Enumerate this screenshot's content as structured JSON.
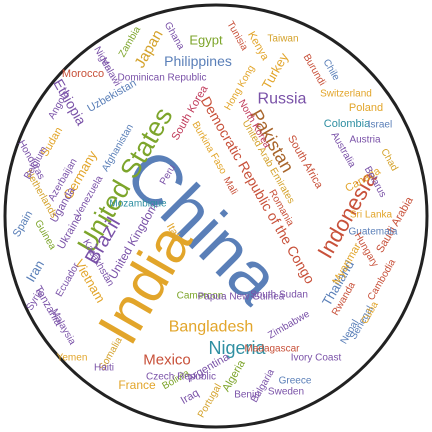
{
  "palette": {
    "blue": "#5a7fb8",
    "purple": "#7a52a8",
    "green": "#7da52b",
    "orange": "#e2a52a",
    "red": "#c8513a",
    "teal": "#2f8fa2",
    "crimson": "#c03a5a",
    "brown": "#a8652b",
    "gold": "#d4a22b"
  },
  "words": [
    {
      "text": "China",
      "color": "blue"
    },
    {
      "text": "India",
      "color": "orange"
    },
    {
      "text": "United States",
      "color": "green"
    },
    {
      "text": "Indonesia",
      "color": "red"
    },
    {
      "text": "Brazil",
      "color": "purple"
    },
    {
      "text": "Pakistan",
      "color": "brown"
    },
    {
      "text": "Nigeria",
      "color": "teal"
    },
    {
      "text": "Bangladesh",
      "color": "orange"
    },
    {
      "text": "Russia",
      "color": "purple"
    },
    {
      "text": "Mexico",
      "color": "red"
    },
    {
      "text": "Japan",
      "color": "gold"
    },
    {
      "text": "Ethiopia",
      "color": "purple"
    },
    {
      "text": "Philippines",
      "color": "blue"
    },
    {
      "text": "Egypt",
      "color": "green"
    },
    {
      "text": "Vietnam",
      "color": "orange"
    },
    {
      "text": "Democratic Republic of the Congo",
      "color": "red"
    },
    {
      "text": "Germany",
      "color": "orange"
    },
    {
      "text": "Turkey",
      "color": "orange"
    },
    {
      "text": "Iran",
      "color": "blue"
    },
    {
      "text": "Thailand",
      "color": "blue"
    },
    {
      "text": "France",
      "color": "orange"
    },
    {
      "text": "United Kingdom",
      "color": "purple"
    },
    {
      "text": "Italy",
      "color": "orange"
    },
    {
      "text": "South Africa",
      "color": "red"
    },
    {
      "text": "Tanzania",
      "color": "purple"
    },
    {
      "text": "Myanmar",
      "color": "orange"
    },
    {
      "text": "Kenya",
      "color": "orange"
    },
    {
      "text": "South Korea",
      "color": "crimson"
    },
    {
      "text": "Colombia",
      "color": "teal"
    },
    {
      "text": "Spain",
      "color": "blue"
    },
    {
      "text": "Ukraine",
      "color": "purple"
    },
    {
      "text": "Argentina",
      "color": "purple"
    },
    {
      "text": "Algeria",
      "color": "green"
    },
    {
      "text": "Sudan",
      "color": "orange"
    },
    {
      "text": "Uganda",
      "color": "purple"
    },
    {
      "text": "Iraq",
      "color": "purple"
    },
    {
      "text": "Poland",
      "color": "orange"
    },
    {
      "text": "Canada",
      "color": "orange"
    },
    {
      "text": "Morocco",
      "color": "red"
    },
    {
      "text": "Saudi Arabia",
      "color": "red"
    },
    {
      "text": "Uzbekistan",
      "color": "blue"
    },
    {
      "text": "Peru",
      "color": "purple"
    },
    {
      "text": "Malaysia",
      "color": "purple"
    },
    {
      "text": "Venezuela",
      "color": "purple"
    },
    {
      "text": "Nepal",
      "color": "blue"
    },
    {
      "text": "Afghanistan",
      "color": "blue"
    },
    {
      "text": "Yemen",
      "color": "orange"
    },
    {
      "text": "Ghana",
      "color": "purple"
    },
    {
      "text": "Mozambique",
      "color": "teal"
    },
    {
      "text": "North Korea",
      "color": "crimson"
    },
    {
      "text": "Australia",
      "color": "purple"
    },
    {
      "text": "Cameroon",
      "color": "green"
    },
    {
      "text": "Ivory Coast",
      "color": "purple"
    },
    {
      "text": "Madagascar",
      "color": "red"
    },
    {
      "text": "Taiwan",
      "color": "gold"
    },
    {
      "text": "Sri Lanka",
      "color": "orange"
    },
    {
      "text": "Niger",
      "color": "purple"
    },
    {
      "text": "Romania",
      "color": "red"
    },
    {
      "text": "Burkina Faso",
      "color": "orange"
    },
    {
      "text": "Syria",
      "color": "purple"
    },
    {
      "text": "Mali",
      "color": "red"
    },
    {
      "text": "Malawi",
      "color": "purple"
    },
    {
      "text": "Chile",
      "color": "blue"
    },
    {
      "text": "Kazakhstan",
      "color": "purple"
    },
    {
      "text": "Zambia",
      "color": "green"
    },
    {
      "text": "Guatemala",
      "color": "blue"
    },
    {
      "text": "Ecuador",
      "color": "purple"
    },
    {
      "text": "Netherlands",
      "color": "gold"
    },
    {
      "text": "Cambodia",
      "color": "red"
    },
    {
      "text": "Senegal",
      "color": "blue"
    },
    {
      "text": "Chad",
      "color": "gold"
    },
    {
      "text": "Somalia",
      "color": "gold"
    },
    {
      "text": "Zimbabwe",
      "color": "purple"
    },
    {
      "text": "Guinea",
      "color": "green"
    },
    {
      "text": "South Sudan",
      "color": "purple"
    },
    {
      "text": "Rwanda",
      "color": "red"
    },
    {
      "text": "Benin",
      "color": "purple"
    },
    {
      "text": "Tunisia",
      "color": "red"
    },
    {
      "text": "Burundi",
      "color": "red"
    },
    {
      "text": "Bolivia",
      "color": "green"
    },
    {
      "text": "Cuba",
      "color": "orange"
    },
    {
      "text": "Haiti",
      "color": "purple"
    },
    {
      "text": "Belgium",
      "color": "purple"
    },
    {
      "text": "Dominican Republic",
      "color": "purple"
    },
    {
      "text": "Greece",
      "color": "blue"
    },
    {
      "text": "Czech Republic",
      "color": "purple"
    },
    {
      "text": "Portugal",
      "color": "gold"
    },
    {
      "text": "Sweden",
      "color": "purple"
    },
    {
      "text": "Azerbaijan",
      "color": "purple"
    },
    {
      "text": "Hungary",
      "color": "red"
    },
    {
      "text": "Belarus",
      "color": "purple"
    },
    {
      "text": "United Arab Emirates",
      "color": "gold"
    },
    {
      "text": "Honduras",
      "color": "purple"
    },
    {
      "text": "Israel",
      "color": "blue"
    },
    {
      "text": "Austria",
      "color": "purple"
    },
    {
      "text": "Papua New Guinea",
      "color": "purple"
    },
    {
      "text": "Switzerland",
      "color": "orange"
    },
    {
      "text": "Angola",
      "color": "purple"
    },
    {
      "text": "Hong Kong",
      "color": "orange"
    },
    {
      "text": "Bulgaria",
      "color": "purple"
    }
  ]
}
